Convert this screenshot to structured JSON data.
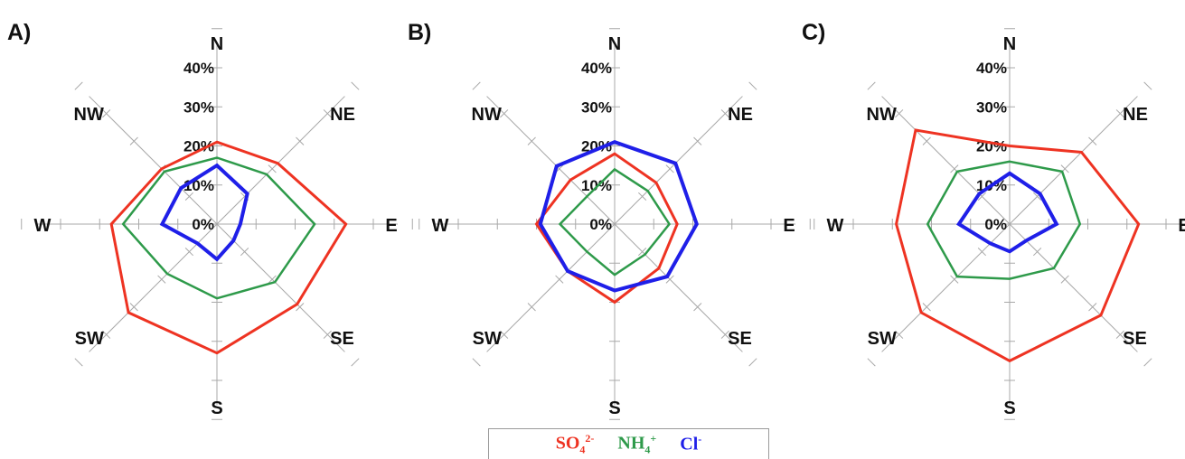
{
  "legend": {
    "so4": {
      "base": "SO",
      "sub": "4",
      "sup": "2-",
      "color": "#ee3322"
    },
    "nh4": {
      "base": "NH",
      "sub": "4",
      "sup": "+",
      "color": "#2e9a4a"
    },
    "cl": {
      "base": "Cl",
      "sub": "",
      "sup": "-",
      "color": "#1f1fe8"
    }
  },
  "chart_data": [
    {
      "type": "radar",
      "panel_label": "A)",
      "directions": [
        "N",
        "NE",
        "E",
        "SE",
        "S",
        "SW",
        "W",
        "NW"
      ],
      "ticks": [
        "0%",
        "10%",
        "20%",
        "30%",
        "40%"
      ],
      "rlim": [
        0,
        40
      ],
      "unit": "%",
      "series": [
        {
          "key": "so4",
          "values": [
            21,
            22,
            33,
            29,
            33,
            32,
            27,
            20
          ]
        },
        {
          "key": "nh4",
          "values": [
            17,
            18,
            25,
            21,
            19,
            18,
            24,
            19
          ]
        },
        {
          "key": "cl",
          "values": [
            15,
            11,
            6,
            6,
            9,
            7,
            14,
            13
          ]
        }
      ]
    },
    {
      "type": "radar",
      "panel_label": "B)",
      "directions": [
        "N",
        "NE",
        "E",
        "SE",
        "S",
        "SW",
        "W",
        "NW"
      ],
      "ticks": [
        "0%",
        "10%",
        "20%",
        "30%",
        "40%"
      ],
      "rlim": [
        0,
        40
      ],
      "unit": "%",
      "series": [
        {
          "key": "so4",
          "values": [
            18,
            15,
            16,
            16,
            20,
            17,
            20,
            16
          ]
        },
        {
          "key": "nh4",
          "values": [
            14,
            12,
            14,
            11,
            13,
            10,
            14,
            10
          ]
        },
        {
          "key": "cl",
          "values": [
            21,
            22,
            21,
            19,
            17,
            17,
            19,
            21
          ]
        }
      ]
    },
    {
      "type": "radar",
      "panel_label": "C)",
      "directions": [
        "N",
        "NE",
        "E",
        "SE",
        "S",
        "SW",
        "W",
        "NW"
      ],
      "ticks": [
        "0%",
        "10%",
        "20%",
        "30%",
        "40%"
      ],
      "rlim": [
        0,
        40
      ],
      "unit": "%",
      "series": [
        {
          "key": "so4",
          "values": [
            20,
            26,
            33,
            33,
            35,
            32,
            29,
            34
          ]
        },
        {
          "key": "nh4",
          "values": [
            16,
            19,
            18,
            16,
            14,
            19,
            21,
            19
          ]
        },
        {
          "key": "cl",
          "values": [
            13,
            11,
            12,
            6,
            7,
            7,
            13,
            11
          ]
        }
      ]
    }
  ]
}
